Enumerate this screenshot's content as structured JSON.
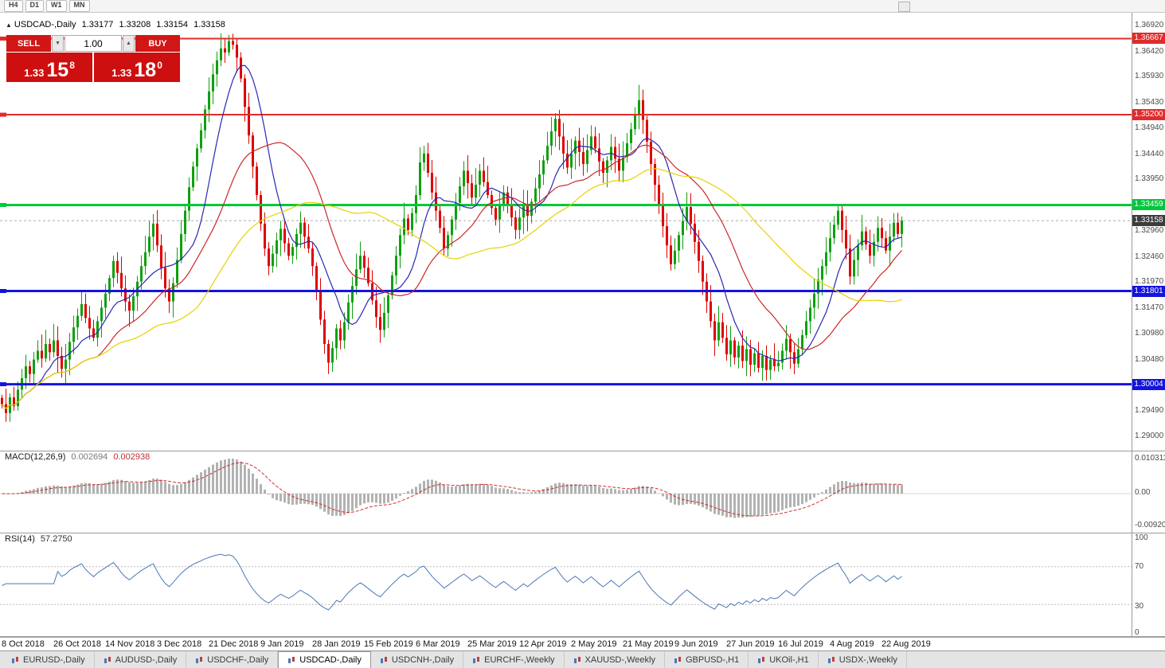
{
  "window": {
    "timeframes": [
      "H4",
      "D1",
      "W1",
      "MN"
    ]
  },
  "chart_header": {
    "title": "USDCAD-,Daily",
    "open": "1.33177",
    "high": "1.33208",
    "low": "1.33154",
    "close": "1.33158"
  },
  "trade_panel": {
    "sell_label": "SELL",
    "buy_label": "BUY",
    "volume": "1.00",
    "sell_price": {
      "main": "1.33",
      "pips": "15",
      "sup": "8"
    },
    "buy_price": {
      "main": "1.33",
      "pips": "18",
      "sup": "0"
    }
  },
  "chart_data": {
    "type": "candlestick",
    "symbol": "USDCAD",
    "timeframe": "Daily",
    "ylim": [
      1.29,
      1.3692
    ],
    "x_labels": [
      "8 Oct 2018",
      "26 Oct 2018",
      "14 Nov 2018",
      "3 Dec 2018",
      "21 Dec 2018",
      "9 Jan 2019",
      "28 Jan 2019",
      "15 Feb 2019",
      "6 Mar 2019",
      "25 Mar 2019",
      "12 Apr 2019",
      "2 May 2019",
      "21 May 2019",
      "9 Jun 2019",
      "27 Jun 2019",
      "16 Jul 2019",
      "4 Aug 2019",
      "22 Aug 2019"
    ],
    "bars_per_x_label": 13,
    "closes": [
      1.2962,
      1.2945,
      1.2975,
      1.2958,
      1.299,
      1.3012,
      1.3035,
      1.302,
      1.3048,
      1.3065,
      1.305,
      1.3078,
      1.3062,
      1.3085,
      1.3055,
      1.303,
      1.3048,
      1.3082,
      1.311,
      1.3132,
      1.3155,
      1.3128,
      1.3108,
      1.309,
      1.3122,
      1.3148,
      1.3175,
      1.3205,
      1.3238,
      1.3215,
      1.3185,
      1.316,
      1.3142,
      1.317,
      1.3198,
      1.3228,
      1.3255,
      1.3285,
      1.331,
      1.3268,
      1.3225,
      1.3185,
      1.316,
      1.3195,
      1.324,
      1.329,
      1.3335,
      1.338,
      1.342,
      1.3455,
      1.349,
      1.353,
      1.3565,
      1.3598,
      1.3625,
      1.3648,
      1.364,
      1.3662,
      1.3655,
      1.363,
      1.359,
      1.3535,
      1.348,
      1.342,
      1.3365,
      1.331,
      1.3262,
      1.3228,
      1.3252,
      1.3278,
      1.33,
      1.3272,
      1.3248,
      1.3265,
      1.329,
      1.3312,
      1.3285,
      1.3262,
      1.3228,
      1.318,
      1.3125,
      1.3078,
      1.3042,
      1.307,
      1.3108,
      1.3085,
      1.312,
      1.3158,
      1.319,
      1.3222,
      1.3248,
      1.3225,
      1.3195,
      1.3162,
      1.313,
      1.3105,
      1.3138,
      1.3172,
      1.321,
      1.3248,
      1.3288,
      1.332,
      1.3298,
      1.333,
      1.3365,
      1.3428,
      1.3445,
      1.3408,
      1.337,
      1.3335,
      1.3302,
      1.3262,
      1.3288,
      1.3318,
      1.335,
      1.3382,
      1.3412,
      1.3388,
      1.336,
      1.3385,
      1.3412,
      1.339,
      1.3365,
      1.334,
      1.3318,
      1.3345,
      1.337,
      1.3348,
      1.3322,
      1.3298,
      1.3322,
      1.3348,
      1.3325,
      1.3352,
      1.3378,
      1.3405,
      1.3432,
      1.346,
      1.3488,
      1.3512,
      1.3478,
      1.3445,
      1.3418,
      1.3445,
      1.347,
      1.3448,
      1.3425,
      1.3452,
      1.3478,
      1.3455,
      1.343,
      1.3408,
      1.3432,
      1.3458,
      1.3435,
      1.3412,
      1.3438,
      1.3465,
      1.3492,
      1.352,
      1.3548,
      1.351,
      1.3468,
      1.3425,
      1.3385,
      1.3345,
      1.3305,
      1.3268,
      1.3232,
      1.3258,
      1.3288,
      1.3315,
      1.3342,
      1.331,
      1.3275,
      1.3238,
      1.3198,
      1.316,
      1.3122,
      1.3085,
      1.312,
      1.309,
      1.3058,
      1.3085,
      1.3052,
      1.3075,
      1.3045,
      1.3068,
      1.3038,
      1.306,
      1.3032,
      1.3055,
      1.3028,
      1.3048,
      1.3035,
      1.3042,
      1.3065,
      1.3088,
      1.3062,
      1.304,
      1.3068,
      1.3095,
      1.3122,
      1.3148,
      1.3175,
      1.3202,
      1.3228,
      1.3255,
      1.3282,
      1.3308,
      1.3335,
      1.3298,
      1.3262,
      1.3208,
      1.324,
      1.3268,
      1.3295,
      1.327,
      1.3248,
      1.3275,
      1.3302,
      1.3282,
      1.3258,
      1.3285,
      1.3312,
      1.329,
      1.33158
    ],
    "y_axis": {
      "tick_labels": [
        "1.36920",
        "1.36420",
        "1.35930",
        "1.35430",
        "1.34940",
        "1.34440",
        "1.33950",
        "1.32960",
        "1.32460",
        "1.31970",
        "1.31470",
        "1.30980",
        "1.30480",
        "1.29490",
        "1.29000"
      ],
      "tick_prices": [
        1.3692,
        1.3642,
        1.3593,
        1.3543,
        1.3494,
        1.3444,
        1.3395,
        1.3296,
        1.3246,
        1.3197,
        1.3147,
        1.3098,
        1.3048,
        1.2949,
        1.29
      ]
    },
    "hlines": [
      {
        "price": 1.36667,
        "label": "1.36667",
        "color": "#e02c2c",
        "width": 2
      },
      {
        "price": 1.352,
        "label": "1.35200",
        "color": "#e02c2c",
        "width": 2
      },
      {
        "price": 1.33459,
        "label": "1.33459",
        "color": "#00c83c",
        "width": 3
      },
      {
        "price": 1.31801,
        "label": "1.31801",
        "color": "#1414dc",
        "width": 3
      },
      {
        "price": 1.30004,
        "label": "1.30004",
        "color": "#1414dc",
        "width": 3
      }
    ],
    "current_price": {
      "price": 1.33158,
      "label": "1.33158",
      "color": "#3c3c3c"
    },
    "moving_averages": [
      {
        "period": 10,
        "color": "#2828b4"
      },
      {
        "period": 25,
        "color": "#cc2828"
      },
      {
        "period": 50,
        "color": "#e6d200"
      }
    ],
    "indicators": {
      "macd": {
        "label": "MACD(12,26,9)",
        "value_main": "0.002694",
        "value_signal": "0.002938",
        "fast": 12,
        "slow": 26,
        "smoothing": 9,
        "axis": [
          "0.010311",
          "0.00",
          "-0.009203"
        ],
        "hist_color": "#b2b2b2",
        "signal_color": "#d03030"
      },
      "rsi": {
        "label": "RSI(14)",
        "period": 14,
        "value": "57.2750",
        "axis": [
          "100",
          "70",
          "30",
          "0"
        ],
        "levels": [
          70,
          30
        ],
        "color": "#4a78b8"
      }
    },
    "candle_colors": {
      "up": "#0fa00f",
      "down": "#e00000"
    }
  },
  "bottom_tabs": [
    "EURUSD-,Daily",
    "AUDUSD-,Daily",
    "USDCHF-,Daily",
    "USDCAD-,Daily",
    "USDCNH-,Daily",
    "EURCHF-,Weekly",
    "XAUUSD-,Weekly",
    "GBPUSD-,H1",
    "UKOil-,H1",
    "USDX-,Weekly"
  ],
  "active_tab_index": 3
}
